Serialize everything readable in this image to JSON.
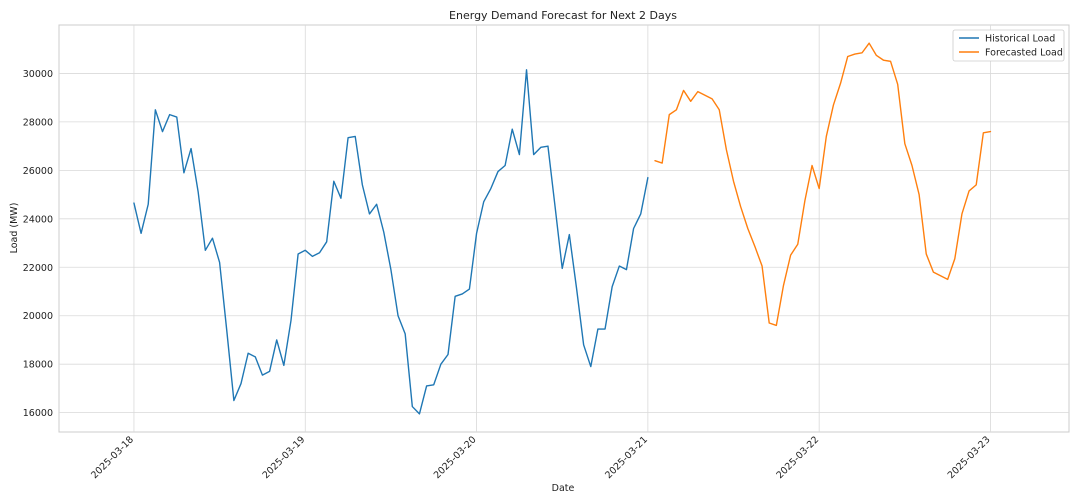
{
  "chart_data": {
    "type": "line",
    "title": "Energy Demand Forecast for Next 2 Days",
    "xlabel": "Date",
    "ylabel": "Load (MW)",
    "x_ticks": [
      "2025-03-18",
      "2025-03-19",
      "2025-03-20",
      "2025-03-21",
      "2025-03-22",
      "2025-03-23"
    ],
    "y_ticks": [
      16000,
      18000,
      20000,
      22000,
      24000,
      26000,
      28000,
      30000
    ],
    "xlim": [
      "2025-03-17T13:30",
      "2025-03-23T11:00"
    ],
    "ylim": [
      15200,
      32000
    ],
    "grid": true,
    "legend_position": "top-right",
    "series": [
      {
        "name": "Historical Load",
        "color": "#1f77b4",
        "x_start": "2025-03-18T00:00",
        "step_hours": 1,
        "values": [
          24650,
          23400,
          24600,
          28500,
          27600,
          28300,
          28200,
          25900,
          26900,
          25100,
          22700,
          23200,
          22200,
          19400,
          16500,
          17200,
          18450,
          18300,
          17550,
          17700,
          19000,
          17950,
          19800,
          22550,
          22700,
          22450,
          22600,
          23050,
          25550,
          24850,
          27350,
          27400,
          25400,
          24200,
          24600,
          23450,
          21900,
          20000,
          19250,
          16250,
          15950,
          17100,
          17150,
          18000,
          18400,
          20800,
          20900,
          21100,
          23400,
          24700,
          25250,
          25950,
          26200,
          27700,
          26650,
          30150,
          26650,
          26950,
          27000,
          24500,
          21950,
          23350,
          21150,
          18800,
          17900,
          19450,
          19450,
          21200,
          22050,
          21900,
          23600,
          24200,
          25700
        ]
      },
      {
        "name": "Forecasted Load",
        "color": "#ff7f0e",
        "x_start": "2025-03-21T01:00",
        "step_hours": 1,
        "values": [
          26400,
          26300,
          28300,
          28500,
          29300,
          28850,
          29250,
          29100,
          28950,
          28500,
          26850,
          25550,
          24500,
          23600,
          22850,
          22050,
          19700,
          19600,
          21250,
          22500,
          22950,
          24750,
          26200,
          25250,
          27400,
          28700,
          29600,
          30700,
          30800,
          30850,
          31250,
          30750,
          30550,
          30500,
          29550,
          27100,
          26200,
          25000,
          22550,
          21800,
          21650,
          21500,
          22350,
          24200,
          25150,
          25400,
          27550,
          27600
        ]
      }
    ]
  }
}
